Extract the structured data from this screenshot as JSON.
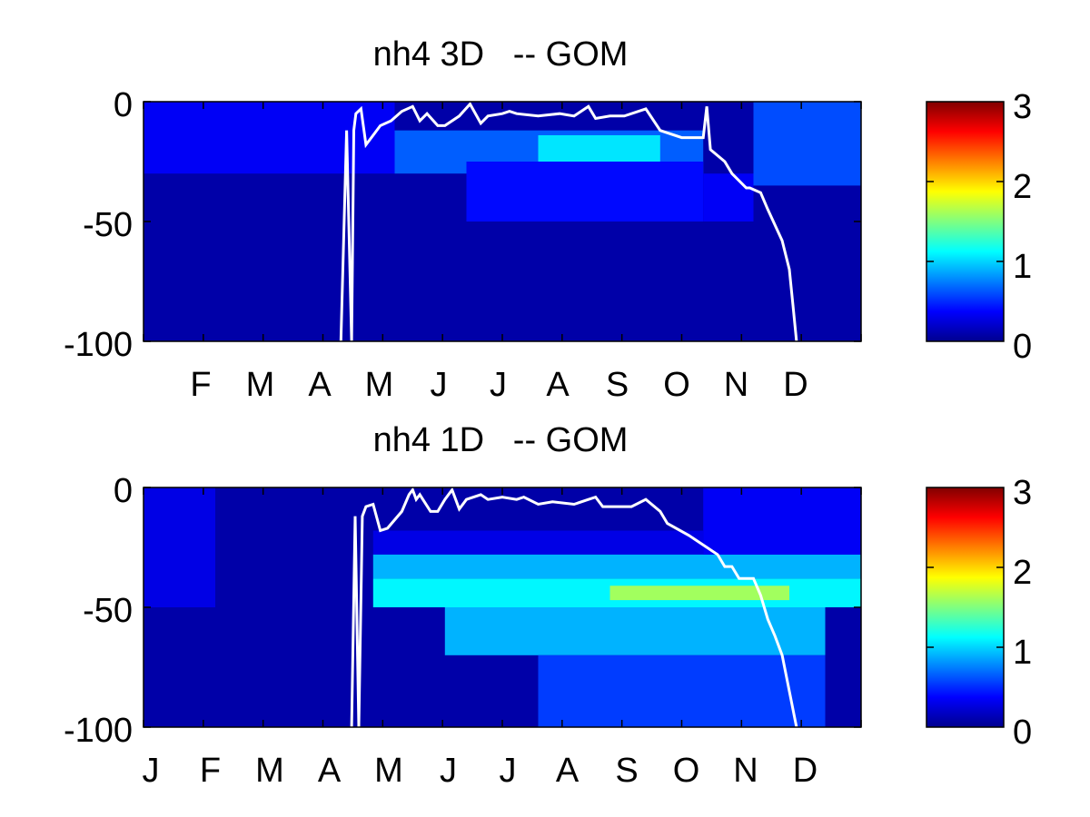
{
  "chart_data": [
    {
      "type": "heatmap",
      "title": "nh4 3D   -- GOM",
      "y_ticks": [
        "0",
        "-50",
        "-100"
      ],
      "ylim": [
        -100,
        0
      ],
      "x_ticks": [
        "F",
        "M",
        "A",
        "M",
        "J",
        "J",
        "A",
        "S",
        "O",
        "N",
        "D"
      ],
      "colorbar": {
        "range": [
          0,
          3
        ],
        "ticks": [
          "0",
          "1",
          "2",
          "3"
        ],
        "colormap": "jet"
      },
      "heat_features": [
        {
          "t0": 0.0,
          "t1": 1.0,
          "d0": -100,
          "d1": 0,
          "value": 0.12
        },
        {
          "t0": 0.0,
          "t1": 0.35,
          "d0": -30,
          "d1": 0,
          "value": 0.35
        },
        {
          "t0": 0.35,
          "t1": 0.78,
          "d0": -30,
          "d1": -12,
          "value": 0.65
        },
        {
          "t0": 0.55,
          "t1": 0.72,
          "d0": -28,
          "d1": -14,
          "value": 1.05
        },
        {
          "t0": 0.45,
          "t1": 0.78,
          "d0": -50,
          "d1": -25,
          "value": 0.4
        },
        {
          "t0": 0.85,
          "t1": 1.0,
          "d0": -35,
          "d1": 0,
          "value": 0.6
        },
        {
          "t0": 0.78,
          "t1": 0.85,
          "d0": -50,
          "d1": -30,
          "value": 0.35
        }
      ],
      "series": [
        {
          "x": [
            0.275,
            0.283,
            0.29,
            0.293,
            0.296,
            0.303,
            0.31,
            0.32,
            0.33,
            0.345,
            0.36,
            0.375,
            0.385,
            0.395,
            0.41,
            0.42,
            0.44,
            0.455,
            0.47,
            0.48,
            0.5,
            0.51,
            0.52,
            0.55,
            0.58,
            0.6,
            0.62,
            0.63,
            0.65,
            0.67,
            0.7,
            0.72,
            0.75,
            0.77,
            0.78,
            0.785,
            0.79,
            0.81,
            0.82,
            0.84,
            0.845,
            0.86,
            0.87,
            0.89,
            0.9,
            0.905,
            0.91
          ],
          "y": [
            -100,
            -12,
            -100,
            -12,
            -5,
            -3,
            -18,
            -14,
            -10,
            -8,
            -4,
            -2,
            -8,
            -5,
            -10,
            -10,
            -6,
            -1,
            -9,
            -6,
            -5,
            -4,
            -5,
            -6,
            -5,
            -6,
            -2,
            -7,
            -6,
            -6,
            -3,
            -12,
            -15,
            -15,
            -15,
            -2,
            -20,
            -25,
            -30,
            -36,
            -36,
            -38,
            -45,
            -58,
            -70,
            -85,
            -100
          ]
        }
      ]
    },
    {
      "type": "heatmap",
      "title": "nh4 1D   -- GOM",
      "y_ticks": [
        "0",
        "-50",
        "-100"
      ],
      "ylim": [
        -100,
        0
      ],
      "x_ticks": [
        "J",
        "F",
        "M",
        "A",
        "M",
        "J",
        "J",
        "A",
        "S",
        "O",
        "N",
        "D"
      ],
      "colorbar": {
        "range": [
          0,
          3
        ],
        "ticks": [
          "0",
          "1",
          "2",
          "3"
        ],
        "colormap": "jet"
      },
      "heat_features": [
        {
          "t0": 0.0,
          "t1": 1.0,
          "d0": -100,
          "d1": 0,
          "value": 0.12
        },
        {
          "t0": 0.0,
          "t1": 0.1,
          "d0": -50,
          "d1": 0,
          "value": 0.3
        },
        {
          "t0": 0.32,
          "t1": 0.78,
          "d0": -28,
          "d1": -18,
          "value": 0.3
        },
        {
          "t0": 0.32,
          "t1": 1.0,
          "d0": -38,
          "d1": -28,
          "value": 0.9
        },
        {
          "t0": 0.32,
          "t1": 1.0,
          "d0": -50,
          "d1": -38,
          "value": 1.1
        },
        {
          "t0": 0.65,
          "t1": 0.9,
          "d0": -47,
          "d1": -41,
          "value": 1.6
        },
        {
          "t0": 0.42,
          "t1": 0.95,
          "d0": -70,
          "d1": -50,
          "value": 0.9
        },
        {
          "t0": 0.55,
          "t1": 0.95,
          "d0": -100,
          "d1": -70,
          "value": 0.55
        },
        {
          "t0": 0.78,
          "t1": 1.0,
          "d0": -28,
          "d1": 0,
          "value": 0.35
        }
      ],
      "series": [
        {
          "x": [
            0.29,
            0.295,
            0.3,
            0.305,
            0.31,
            0.32,
            0.33,
            0.34,
            0.36,
            0.37,
            0.375,
            0.38,
            0.385,
            0.4,
            0.41,
            0.42,
            0.43,
            0.44,
            0.45,
            0.47,
            0.48,
            0.5,
            0.52,
            0.53,
            0.55,
            0.57,
            0.6,
            0.62,
            0.63,
            0.64,
            0.66,
            0.68,
            0.7,
            0.72,
            0.73,
            0.76,
            0.8,
            0.81,
            0.82,
            0.83,
            0.85,
            0.86,
            0.87,
            0.88,
            0.89,
            0.9,
            0.91
          ],
          "y": [
            -100,
            -12,
            -100,
            -12,
            -8,
            -7,
            -18,
            -17,
            -10,
            -3,
            -1,
            -5,
            -3,
            -10,
            -10,
            -5,
            -1,
            -9,
            -5,
            -3,
            -5,
            -4,
            -5,
            -4,
            -7,
            -6,
            -7,
            -5,
            -4,
            -8,
            -8,
            -8,
            -5,
            -10,
            -15,
            -20,
            -28,
            -33,
            -33,
            -38,
            -38,
            -45,
            -55,
            -62,
            -70,
            -85,
            -100
          ]
        }
      ]
    }
  ]
}
